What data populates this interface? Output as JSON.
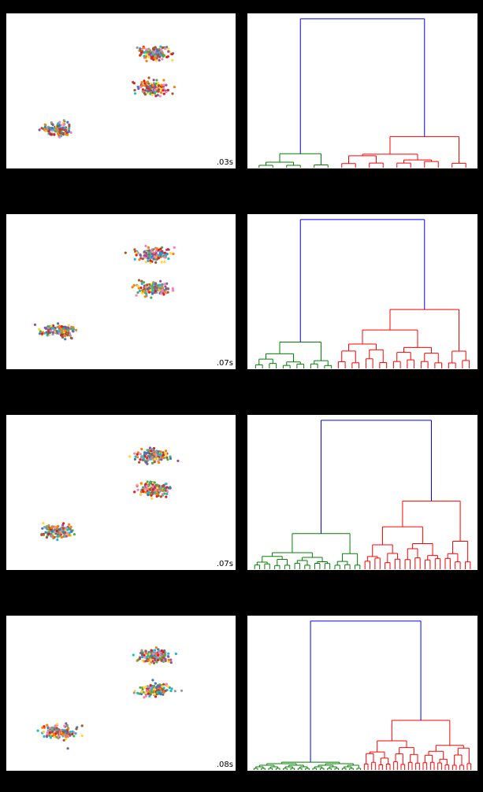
{
  "chart_data": [
    {
      "row": 1,
      "scatter": {
        "type": "scatter",
        "timing_label": ".03s",
        "seed": 11,
        "clusters": [
          {
            "cx": 0.645,
            "cy": 0.74,
            "n": 140
          },
          {
            "cx": 0.645,
            "cy": 0.52,
            "n": 130
          },
          {
            "cx": 0.225,
            "cy": 0.25,
            "n": 130
          }
        ]
      },
      "dendrogram": {
        "type": "dendrogram",
        "link_color": "#0000ff",
        "groups": [
          {
            "color": "#008000",
            "leaves": 6,
            "height": 0.09,
            "position": "left"
          },
          {
            "color": "#ff0000",
            "leaves": 10,
            "height": 0.2,
            "position": "right"
          }
        ],
        "root_height": 0.96
      }
    },
    {
      "row": 2,
      "scatter": {
        "type": "scatter",
        "timing_label": ".07s",
        "seed": 23,
        "clusters": [
          {
            "cx": 0.645,
            "cy": 0.74,
            "n": 150
          },
          {
            "cx": 0.645,
            "cy": 0.52,
            "n": 140
          },
          {
            "cx": 0.225,
            "cy": 0.25,
            "n": 140
          }
        ]
      },
      "dendrogram": {
        "type": "dendrogram",
        "link_color": "#0000ff",
        "groups": [
          {
            "color": "#008000",
            "leaves": 12,
            "height": 0.17,
            "position": "left"
          },
          {
            "color": "#ff0000",
            "leaves": 20,
            "height": 0.38,
            "position": "right"
          }
        ],
        "root_height": 0.96
      }
    },
    {
      "row": 3,
      "scatter": {
        "type": "scatter",
        "timing_label": ".07s",
        "seed": 37,
        "clusters": [
          {
            "cx": 0.645,
            "cy": 0.74,
            "n": 160
          },
          {
            "cx": 0.645,
            "cy": 0.52,
            "n": 150
          },
          {
            "cx": 0.225,
            "cy": 0.25,
            "n": 150
          }
        ]
      },
      "dendrogram": {
        "type": "dendrogram",
        "link_color": "#0000ff",
        "groups": [
          {
            "color": "#008000",
            "leaves": 22,
            "height": 0.23,
            "position": "left"
          },
          {
            "color": "#ff0000",
            "leaves": 22,
            "height": 0.44,
            "position": "right"
          }
        ],
        "root_height": 0.96
      }
    },
    {
      "row": 4,
      "scatter": {
        "type": "scatter",
        "timing_label": ".08s",
        "seed": 51,
        "clusters": [
          {
            "cx": 0.645,
            "cy": 0.74,
            "n": 160
          },
          {
            "cx": 0.645,
            "cy": 0.52,
            "n": 150
          },
          {
            "cx": 0.225,
            "cy": 0.25,
            "n": 150
          }
        ]
      },
      "dendrogram": {
        "type": "dendrogram",
        "link_color": "#0000ff",
        "groups": [
          {
            "color": "#008000",
            "leaves": 30,
            "height": 0.05,
            "position": "left"
          },
          {
            "color": "#ff0000",
            "leaves": 30,
            "height": 0.32,
            "position": "right"
          }
        ],
        "root_height": 0.96
      }
    }
  ],
  "point_palette": [
    "#e41a1c",
    "#377eb8",
    "#4daf4a",
    "#984ea3",
    "#ff7f00",
    "#ffd92f",
    "#a65628",
    "#f781bf",
    "#999999",
    "#17becf"
  ]
}
